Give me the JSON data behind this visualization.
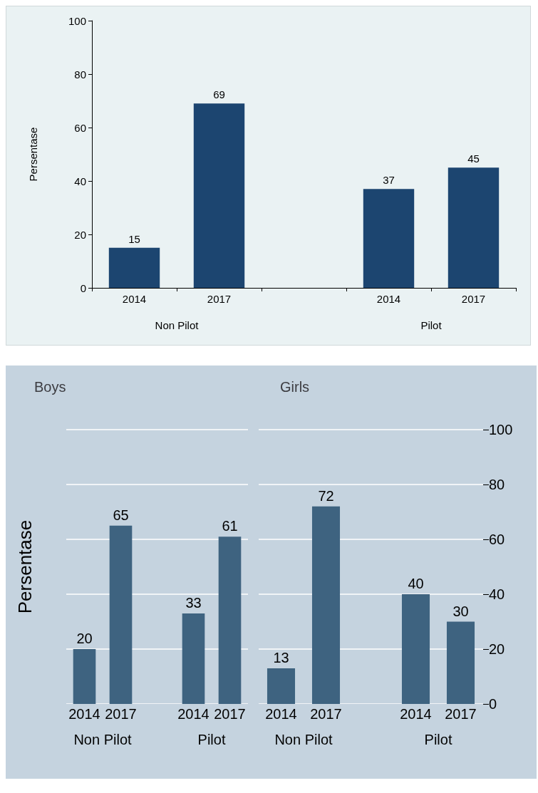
{
  "chart_data": [
    {
      "type": "bar",
      "ylabel": "Persentase",
      "categories": [
        "2014",
        "2017",
        null,
        "2014",
        "2017"
      ],
      "values": [
        15,
        69,
        null,
        37,
        45
      ],
      "color": "#1c4570",
      "ylim": [
        0,
        100
      ],
      "yticks": [
        0,
        20,
        40,
        60,
        80,
        100
      ],
      "grid": false,
      "data_labels": true,
      "annotations": [
        "Non Pilot",
        "Pilot"
      ]
    },
    {
      "type": "bar",
      "title": "Boys",
      "ylabel": "Persentase",
      "categories": [
        "2014",
        "2017",
        null,
        "2014",
        "2017"
      ],
      "values": [
        20,
        65,
        null,
        33,
        61
      ],
      "color": "#3e6380",
      "ylim": [
        0,
        100
      ],
      "yticks": [
        0,
        20,
        40,
        60,
        80,
        100
      ],
      "grid": "y",
      "data_labels": true,
      "tick_labels": "x",
      "annotations": [
        "Non Pilot",
        "Pilot"
      ]
    },
    {
      "type": "bar",
      "title": "Girls",
      "categories": [
        "2014",
        "2017",
        null,
        "2014",
        "2017"
      ],
      "values": [
        13,
        72,
        null,
        40,
        30
      ],
      "color": "#3e6380",
      "ylim": [
        0,
        100
      ],
      "yticks": [
        0,
        20,
        40,
        60,
        80,
        100
      ],
      "grid": "y",
      "data_labels": true,
      "annotations": [
        "Non Pilot",
        "Pilot"
      ]
    }
  ]
}
